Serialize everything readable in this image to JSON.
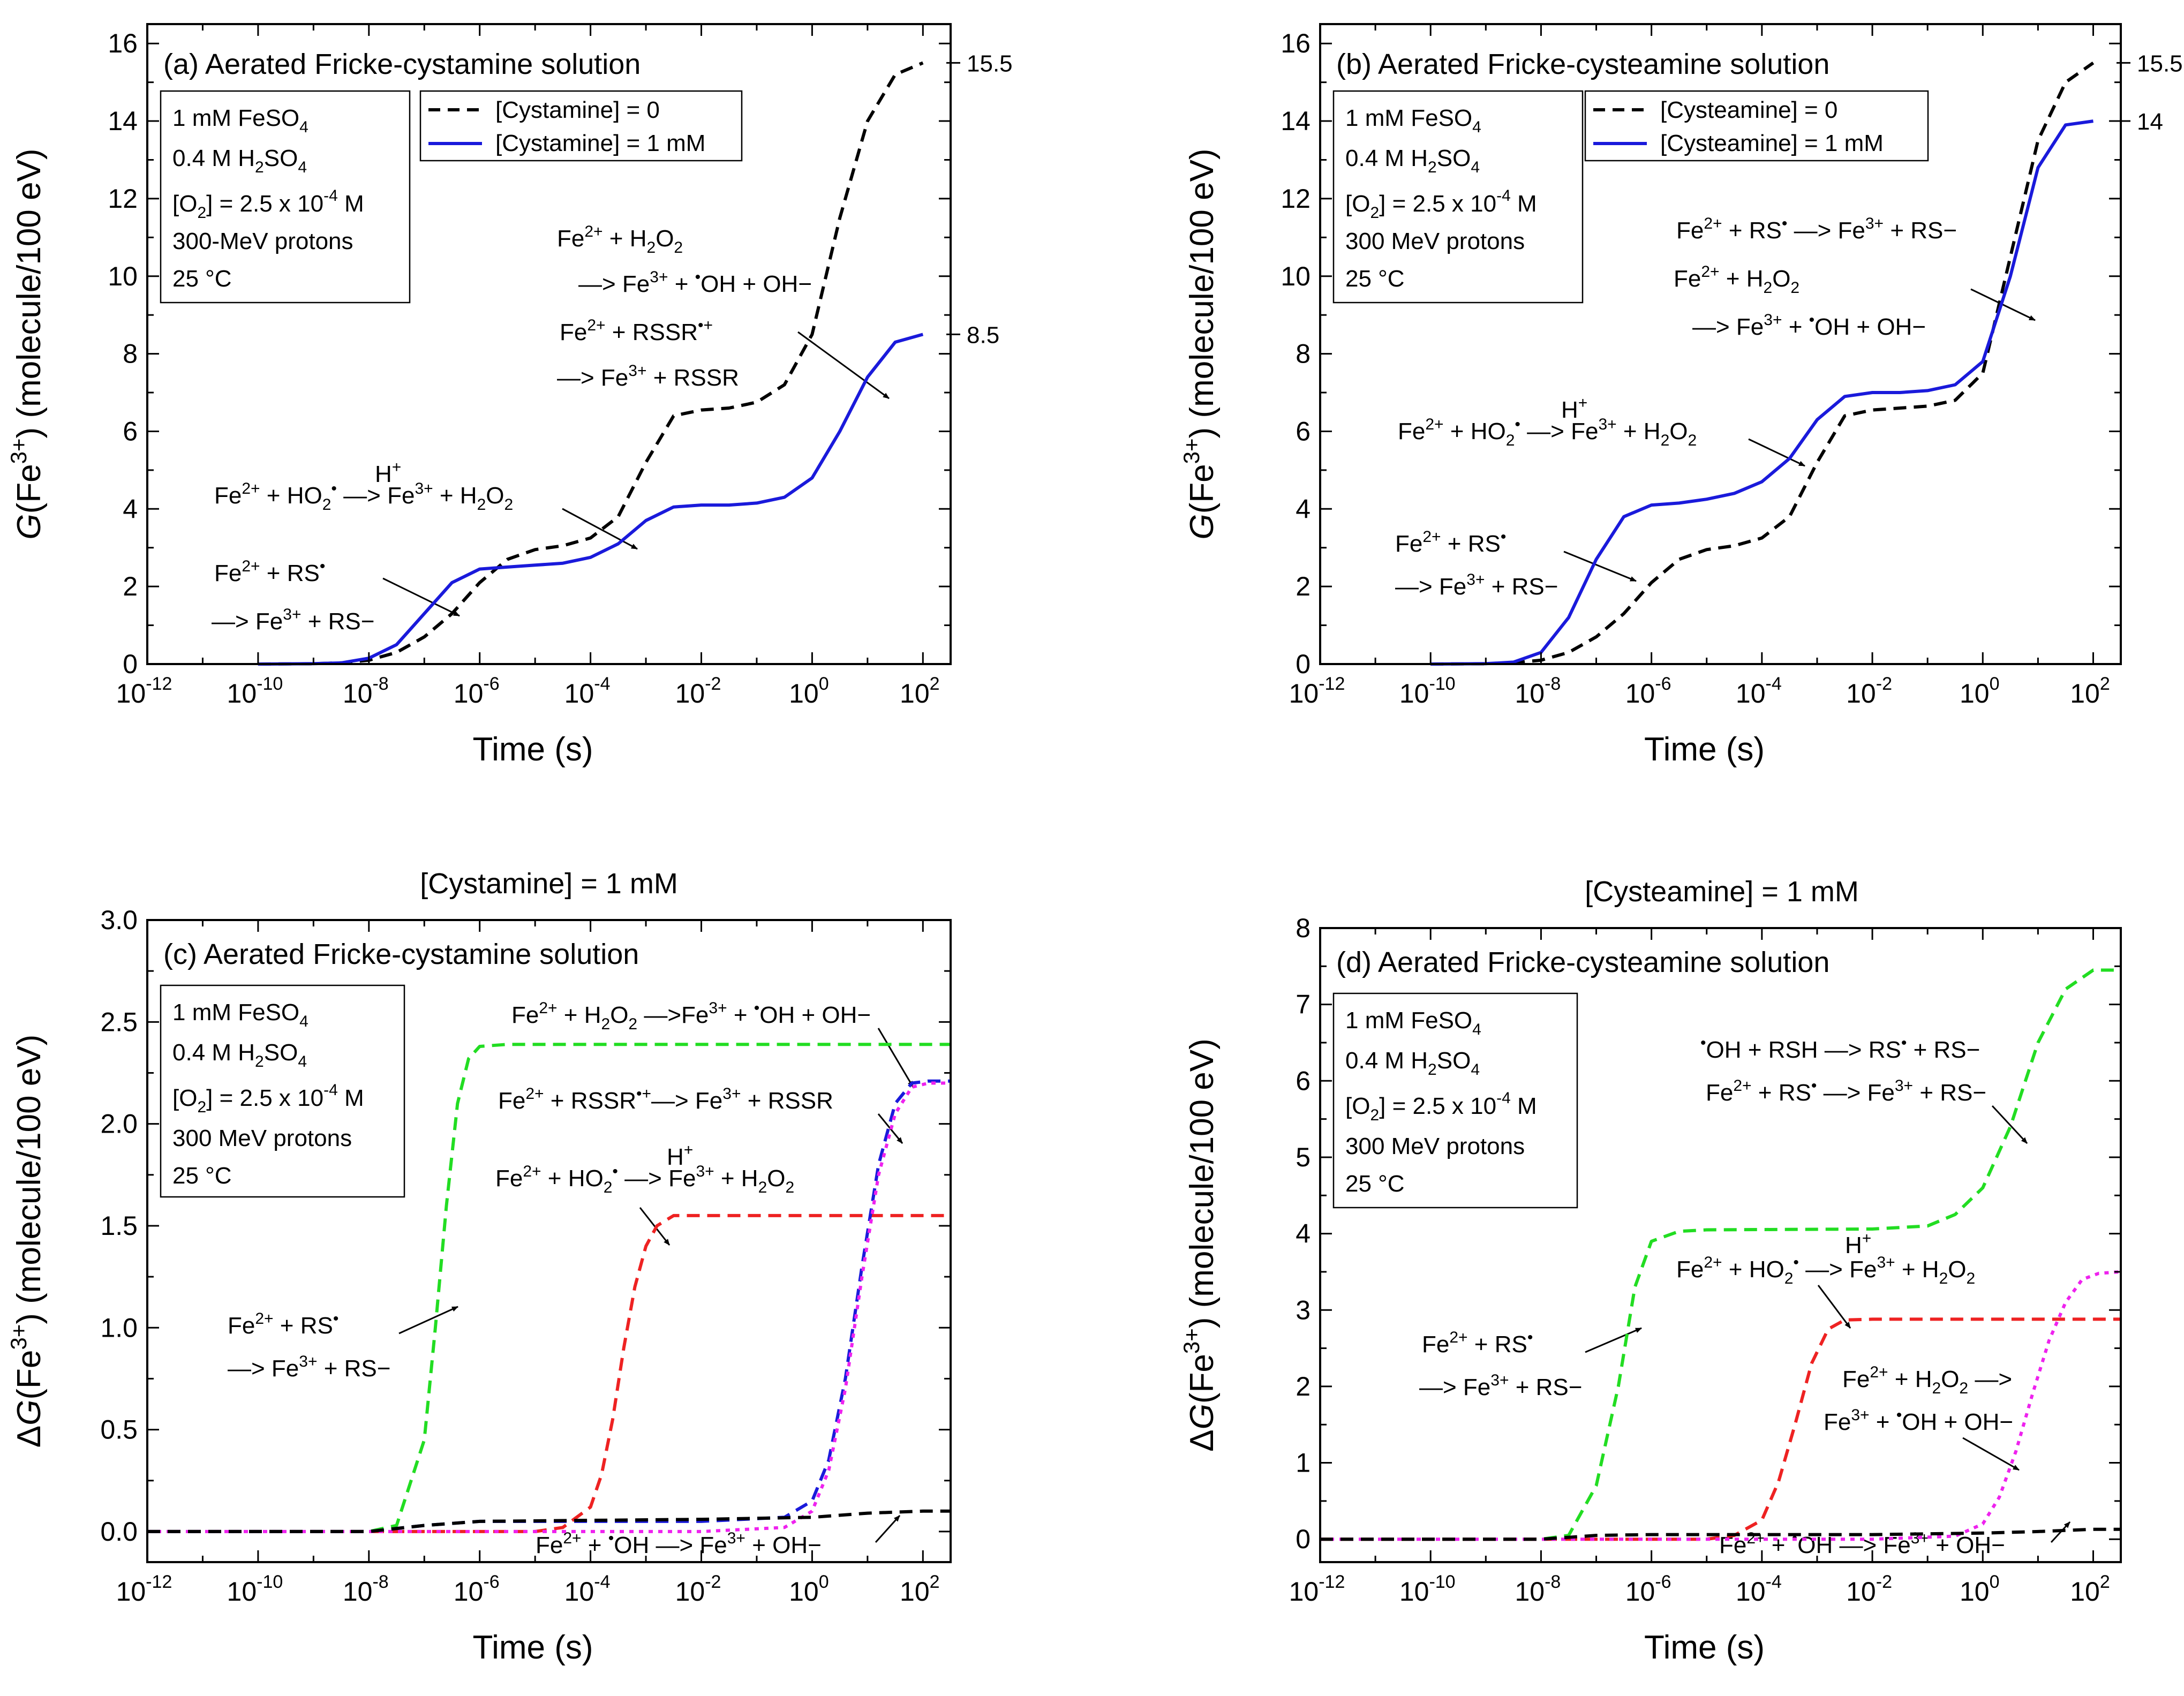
{
  "figure": {
    "x_axis_label": "Time (s)",
    "common_conditions": [
      "1 mM FeSO4",
      "0.4 M H2SO4",
      "[O2] = 2.5 x 10-4 M",
      "25 °C"
    ]
  },
  "chart_data": [
    {
      "id": "a",
      "type": "line",
      "title": "(a) Aerated Fricke-cystamine solution",
      "xlabel": "Time (s)",
      "ylabel": "G(Fe3+) (molecule/100 eV)",
      "xscale": "log",
      "xlim": [
        1e-12,
        316
      ],
      "ylim": [
        0,
        16.5
      ],
      "xticks": [
        -12,
        -10,
        -8,
        -6,
        -4,
        -2,
        0,
        2
      ],
      "yticks": [
        0,
        2,
        4,
        6,
        8,
        10,
        12,
        14,
        16
      ],
      "info": [
        "1 mM FeSO4",
        "0.4 M H2SO4",
        "[O2] = 2.5 x 10-4 M",
        "300-MeV protons",
        "25 °C"
      ],
      "legend": [
        {
          "label": "[Cystamine] = 0",
          "color": "#000000",
          "dash": "dashed"
        },
        {
          "label": "[Cystamine] = 1 mM",
          "color": "#1a1adb",
          "dash": "solid"
        }
      ],
      "series": [
        {
          "name": "[Cystamine] = 0",
          "color": "#000000",
          "dash": "dashed",
          "log10_t": [
            -10,
            -9,
            -8.5,
            -8,
            -7.5,
            -7,
            -6.5,
            -6,
            -5.5,
            -5,
            -4.5,
            -4,
            -3.5,
            -3,
            -2.5,
            -2,
            -1.5,
            -1,
            -0.5,
            0,
            0.5,
            1,
            1.5,
            2
          ],
          "values": [
            0,
            0.01,
            0.03,
            0.1,
            0.3,
            0.7,
            1.3,
            2.1,
            2.7,
            2.95,
            3.05,
            3.25,
            3.8,
            5.2,
            6.4,
            6.55,
            6.6,
            6.75,
            7.2,
            8.5,
            11.5,
            14.0,
            15.2,
            15.5
          ]
        },
        {
          "name": "[Cystamine] = 1 mM",
          "color": "#1a1adb",
          "dash": "solid",
          "log10_t": [
            -10,
            -9,
            -8.5,
            -8,
            -7.5,
            -7,
            -6.5,
            -6,
            -5.5,
            -5,
            -4.5,
            -4,
            -3.5,
            -3,
            -2.5,
            -2,
            -1.5,
            -1,
            -0.5,
            0,
            0.5,
            1,
            1.5,
            2
          ],
          "values": [
            0,
            0.01,
            0.03,
            0.15,
            0.5,
            1.3,
            2.1,
            2.45,
            2.5,
            2.55,
            2.6,
            2.75,
            3.1,
            3.7,
            4.05,
            4.1,
            4.1,
            4.15,
            4.3,
            4.8,
            6.0,
            7.4,
            8.3,
            8.5
          ]
        }
      ],
      "end_labels": [
        {
          "text": "15.5",
          "value": 15.5
        },
        {
          "text": "8.5",
          "value": 8.5
        }
      ],
      "annotations": [
        {
          "lines": [
            "Fe2+ + H2O2",
            "    —> Fe3+ + •OH + OH−",
            "Fe2+ + RSSR•+",
            "—> Fe3+ + RSSR"
          ],
          "arrow_to": [
            1.3,
            7.3
          ]
        },
        {
          "lines": [
            "Fe2+ + HO2• —> Fe3+ + H2O2"
          ],
          "over_arrow": "H+",
          "arrow_to": [
            -3.3,
            3.1
          ]
        },
        {
          "lines": [
            "Fe2+ + RS•",
            "—> Fe3+ + RS−"
          ],
          "arrow_to": [
            -7.3,
            1.2
          ]
        }
      ]
    },
    {
      "id": "b",
      "type": "line",
      "title": "(b) Aerated Fricke-cysteamine solution",
      "xlabel": "Time (s)",
      "ylabel": "G(Fe3+) (molecule/100 eV)",
      "xscale": "log",
      "xlim": [
        1e-12,
        316
      ],
      "ylim": [
        0,
        16.5
      ],
      "xticks": [
        -12,
        -10,
        -8,
        -6,
        -4,
        -2,
        0,
        2
      ],
      "yticks": [
        0,
        2,
        4,
        6,
        8,
        10,
        12,
        14,
        16
      ],
      "info": [
        "1 mM FeSO4",
        "0.4 M H2SO4",
        "[O2] = 2.5 x 10-4 M",
        "300 MeV protons",
        "25 °C"
      ],
      "legend": [
        {
          "label": "[Cysteamine] = 0",
          "color": "#000000",
          "dash": "dashed"
        },
        {
          "label": "[Cysteamine] = 1 mM",
          "color": "#1a1adb",
          "dash": "solid"
        }
      ],
      "series": [
        {
          "name": "[Cysteamine] = 0",
          "color": "#000000",
          "dash": "dashed",
          "log10_t": [
            -10,
            -9,
            -8.5,
            -8,
            -7.5,
            -7,
            -6.5,
            -6,
            -5.5,
            -5,
            -4.5,
            -4,
            -3.5,
            -3,
            -2.5,
            -2,
            -1.5,
            -1,
            -0.5,
            0,
            0.5,
            1,
            1.5,
            2
          ],
          "values": [
            0,
            0.01,
            0.03,
            0.1,
            0.3,
            0.7,
            1.3,
            2.1,
            2.7,
            2.95,
            3.05,
            3.25,
            3.8,
            5.2,
            6.4,
            6.55,
            6.6,
            6.65,
            6.8,
            7.5,
            10.5,
            13.5,
            15.0,
            15.5
          ]
        },
        {
          "name": "[Cysteamine] = 1 mM",
          "color": "#1a1adb",
          "dash": "solid",
          "log10_t": [
            -10,
            -9,
            -8.5,
            -8,
            -7.5,
            -7,
            -6.5,
            -6,
            -5.5,
            -5,
            -4.5,
            -4,
            -3.5,
            -3,
            -2.5,
            -2,
            -1.5,
            -1,
            -0.5,
            0,
            0.5,
            1,
            1.5,
            2
          ],
          "values": [
            0,
            0.01,
            0.05,
            0.3,
            1.2,
            2.7,
            3.8,
            4.1,
            4.15,
            4.25,
            4.4,
            4.7,
            5.3,
            6.3,
            6.9,
            7.0,
            7.0,
            7.05,
            7.2,
            7.8,
            10.0,
            12.8,
            13.9,
            14.0
          ]
        }
      ],
      "end_labels": [
        {
          "text": "15.5",
          "value": 15.5
        },
        {
          "text": "14",
          "value": 14.0
        }
      ],
      "annotations": [
        {
          "lines": [
            "Fe2+ + RS• —> Fe3+ + RS−",
            "Fe2+ + H2O2",
            "    —> Fe3+ + •OH + OH−"
          ],
          "arrow_to": [
            0.5,
            9.4
          ]
        },
        {
          "lines": [
            "Fe2+ + HO2• —> Fe3+ + H2O2"
          ],
          "over_arrow": "H+",
          "arrow_to": [
            -3.0,
            5.3
          ]
        },
        {
          "lines": [
            "Fe2+ + RS•",
            "—> Fe3+ + RS−"
          ],
          "arrow_to": [
            -7.2,
            2.2
          ]
        }
      ]
    },
    {
      "id": "c",
      "type": "line",
      "panel_header": "[Cystamine] = 1 mM",
      "title": "(c) Aerated Fricke-cystamine solution",
      "xlabel": "Time (s)",
      "ylabel": "ΔG(Fe3+) (molecule/100 eV)",
      "xscale": "log",
      "xlim": [
        1e-12,
        316
      ],
      "ylim": [
        -0.15,
        3.0
      ],
      "xticks": [
        -12,
        -10,
        -8,
        -6,
        -4,
        -2,
        0,
        2
      ],
      "yticks": [
        0.0,
        0.5,
        1.0,
        1.5,
        2.0,
        2.5,
        3.0
      ],
      "info": [
        "1 mM FeSO4",
        "0.4 M H2SO4",
        "[O2] = 2.5 x 10-4 M",
        "300 MeV protons",
        "25 °C"
      ],
      "series": [
        {
          "name": "Fe2+ + RS•",
          "color": "#22dd22",
          "dash": "dashed",
          "log10_t": [
            -12,
            -9,
            -8,
            -7.5,
            -7,
            -6.8,
            -6.6,
            -6.4,
            -6.2,
            -6,
            -5.5,
            -5,
            2.5
          ],
          "values": [
            0,
            0,
            0,
            0.03,
            0.45,
            1.0,
            1.6,
            2.1,
            2.32,
            2.38,
            2.39,
            2.39,
            2.39
          ]
        },
        {
          "name": "Fe2+ + HO2•",
          "color": "#ee2222",
          "dash": "dashed",
          "log10_t": [
            -12,
            -7,
            -5,
            -4.5,
            -4,
            -3.8,
            -3.6,
            -3.4,
            -3.2,
            -3,
            -2.8,
            -2.5,
            -2,
            2.5
          ],
          "values": [
            0,
            0,
            0,
            0.02,
            0.12,
            0.28,
            0.55,
            0.9,
            1.2,
            1.4,
            1.5,
            1.55,
            1.55,
            1.55
          ]
        },
        {
          "name": "Fe2+ + RSSR•+",
          "color": "#1a1adb",
          "dash": "dashed",
          "log10_t": [
            -12,
            -8,
            -7,
            -6,
            -2,
            -0.5,
            0,
            0.3,
            0.6,
            0.9,
            1.2,
            1.5,
            1.8,
            2.1,
            2.5
          ],
          "values": [
            0,
            0,
            0.03,
            0.05,
            0.05,
            0.07,
            0.15,
            0.35,
            0.75,
            1.3,
            1.8,
            2.1,
            2.2,
            2.21,
            2.21
          ]
        },
        {
          "name": "Fe2+ + H2O2",
          "color": "#ee22ee",
          "dash": "dotted",
          "log10_t": [
            -12,
            -8,
            -2,
            -0.5,
            0,
            0.3,
            0.6,
            0.9,
            1.2,
            1.5,
            1.8,
            2.1,
            2.5
          ],
          "values": [
            0,
            0,
            0,
            0.02,
            0.1,
            0.3,
            0.7,
            1.25,
            1.75,
            2.05,
            2.18,
            2.2,
            2.2
          ]
        },
        {
          "name": "Fe2+ + •OH",
          "color": "#000000",
          "dash": "dashed",
          "log10_t": [
            -12,
            -8,
            -7,
            -6,
            -2,
            0,
            1,
            2,
            2.5
          ],
          "values": [
            0,
            0,
            0.03,
            0.05,
            0.06,
            0.07,
            0.09,
            0.1,
            0.1
          ]
        }
      ],
      "annotations": [
        {
          "lines": [
            "Fe2+ + H2O2 —>Fe3+ + •OH + OH−"
          ],
          "arrow_to": [
            1.9,
            2.2
          ]
        },
        {
          "lines": [
            "Fe2+ + RSSR•+—> Fe3+ + RSSR"
          ],
          "arrow_to": [
            1.6,
            1.95
          ]
        },
        {
          "lines": [
            "Fe2+ + HO2• —> Fe3+ + H2O2"
          ],
          "over_arrow": "H+",
          "arrow_to": [
            -3.0,
            1.35
          ]
        },
        {
          "lines": [
            "Fe2+ + RS•",
            "—> Fe3+ + RS−"
          ],
          "arrow_to": [
            -6.5,
            1.0
          ]
        },
        {
          "lines": [
            "Fe2+ + •OH —> Fe3+ + OH−"
          ],
          "arrow_to": [
            1.3,
            0.09
          ]
        }
      ]
    },
    {
      "id": "d",
      "type": "line",
      "panel_header": "[Cysteamine] = 1 mM",
      "title": "(d) Aerated Fricke-cysteamine solution",
      "xlabel": "Time (s)",
      "ylabel": "ΔG(Fe3+) (molecule/100 eV)",
      "xscale": "log",
      "xlim": [
        1e-12,
        316
      ],
      "ylim": [
        -0.3,
        8.0
      ],
      "xticks": [
        -12,
        -10,
        -8,
        -6,
        -4,
        -2,
        0,
        2
      ],
      "yticks": [
        0,
        1,
        2,
        3,
        4,
        5,
        6,
        7,
        8
      ],
      "info": [
        "1 mM FeSO4",
        "0.4 M H2SO4",
        "[O2] = 2.5 x 10-4 M",
        "300 MeV protons",
        "25 °C"
      ],
      "series": [
        {
          "name": "•OH + RSH / Fe2+ + RS•",
          "color": "#22dd22",
          "dash": "dashed",
          "log10_t": [
            -12,
            -9,
            -8,
            -7.5,
            -7,
            -6.6,
            -6.3,
            -6,
            -5.5,
            -5,
            -2,
            -1,
            -0.5,
            0,
            0.5,
            1,
            1.5,
            2,
            2.5
          ],
          "values": [
            0,
            0,
            0,
            0.05,
            0.7,
            2.0,
            3.3,
            3.9,
            4.03,
            4.05,
            4.06,
            4.1,
            4.25,
            4.6,
            5.4,
            6.5,
            7.2,
            7.45,
            7.45
          ]
        },
        {
          "name": "Fe2+ + HO2•",
          "color": "#ee2222",
          "dash": "dashed",
          "log10_t": [
            -12,
            -7,
            -5,
            -4.5,
            -4,
            -3.7,
            -3.4,
            -3.1,
            -2.8,
            -2.5,
            -2,
            2.5
          ],
          "values": [
            0,
            0,
            0,
            0.05,
            0.25,
            0.75,
            1.5,
            2.3,
            2.75,
            2.87,
            2.88,
            2.88
          ]
        },
        {
          "name": "Fe2+ + H2O2",
          "color": "#ee22ee",
          "dash": "dotted",
          "log10_t": [
            -12,
            -8,
            -2,
            -0.5,
            0,
            0.3,
            0.6,
            0.9,
            1.2,
            1.5,
            1.8,
            2.1,
            2.5
          ],
          "values": [
            0,
            0,
            0,
            0.04,
            0.2,
            0.55,
            1.15,
            1.9,
            2.6,
            3.1,
            3.4,
            3.48,
            3.5
          ]
        },
        {
          "name": "Fe2+ + •OH",
          "color": "#000000",
          "dash": "dashed",
          "log10_t": [
            -12,
            -8,
            -7,
            -6,
            -2,
            0,
            1,
            2,
            2.5
          ],
          "values": [
            0,
            0,
            0.05,
            0.06,
            0.06,
            0.08,
            0.1,
            0.13,
            0.13
          ]
        }
      ],
      "annotations": [
        {
          "lines": [
            "•OH + RSH —> RS• + RS−",
            "Fe2+ + RS• —> Fe3+ + RS−"
          ],
          "arrow_to": [
            0.5,
            5.0
          ]
        },
        {
          "lines": [
            "Fe2+ + HO2• —> Fe3+ + H2O2"
          ],
          "over_arrow": "H+",
          "arrow_to": [
            -2.6,
            2.5
          ]
        },
        {
          "lines": [
            "Fe2+ + RS•",
            "—> Fe3+ + RS−"
          ],
          "arrow_to": [
            -6.6,
            2.5
          ]
        },
        {
          "lines": [
            "Fe2+ + H2O2 —>",
            "Fe3+ + •OH + OH−"
          ],
          "arrow_to": [
            0.9,
            0.7
          ]
        },
        {
          "lines": [
            "Fe2+ + •OH —> Fe3+ + OH−"
          ],
          "arrow_to": [
            1.6,
            0.12
          ]
        }
      ]
    }
  ]
}
